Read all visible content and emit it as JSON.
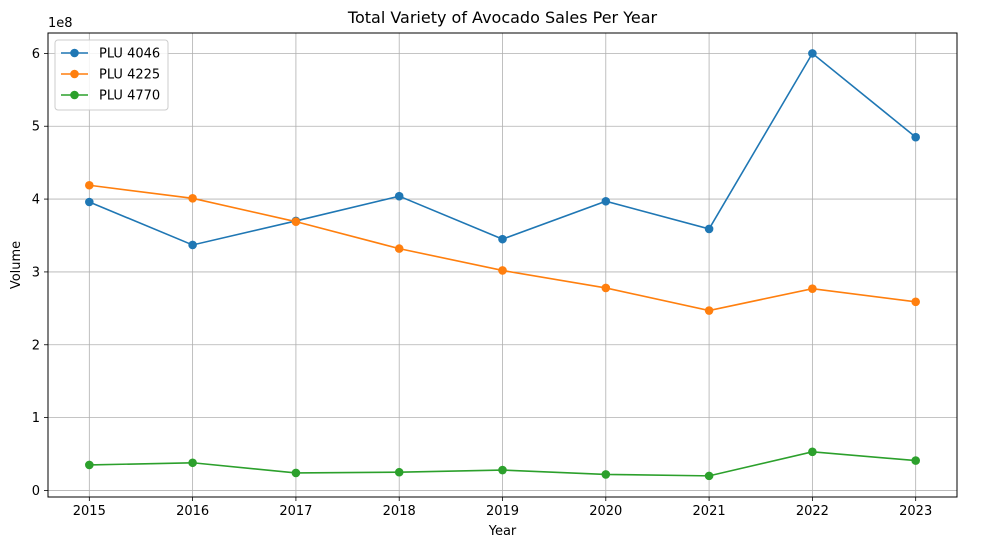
{
  "chart_data": {
    "type": "line",
    "title": "Total Variety of Avocado Sales Per Year",
    "xlabel": "Year",
    "ylabel": "Volume",
    "offset_text": "1e8",
    "x": [
      2015,
      2016,
      2017,
      2018,
      2019,
      2020,
      2021,
      2022,
      2023
    ],
    "xticks": [
      "2015",
      "2016",
      "2017",
      "2018",
      "2019",
      "2020",
      "2021",
      "2022",
      "2023"
    ],
    "yticks": [
      0,
      1,
      2,
      3,
      4,
      5,
      6
    ],
    "ytick_labels": [
      "0",
      "1",
      "2",
      "3",
      "4",
      "5",
      "6"
    ],
    "ylim": [
      -0.09,
      6.28
    ],
    "xlim": [
      2014.6,
      2023.4
    ],
    "grid": true,
    "legend_position": "top-left",
    "series": [
      {
        "name": "PLU 4046",
        "color": "#1f77b4",
        "values": [
          3.96,
          3.37,
          3.7,
          4.04,
          3.45,
          3.97,
          3.59,
          6.0,
          4.85
        ]
      },
      {
        "name": "PLU 4225",
        "color": "#ff7f0e",
        "values": [
          4.19,
          4.01,
          3.69,
          3.32,
          3.02,
          2.78,
          2.47,
          2.77,
          2.59
        ]
      },
      {
        "name": "PLU 4770",
        "color": "#2ca02c",
        "values": [
          0.35,
          0.38,
          0.24,
          0.25,
          0.28,
          0.22,
          0.2,
          0.53,
          0.41
        ]
      }
    ]
  }
}
